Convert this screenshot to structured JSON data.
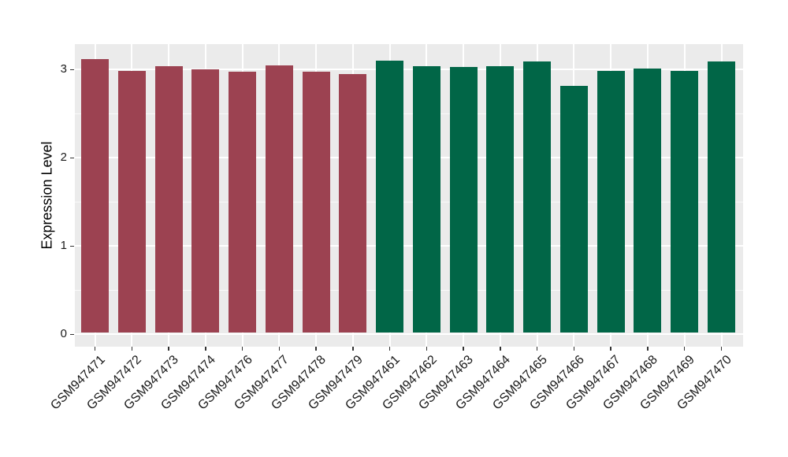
{
  "chart_data": {
    "type": "bar",
    "title": "",
    "xlabel": "",
    "ylabel": "Expression Level",
    "categories": [
      "GSM947471",
      "GSM947472",
      "GSM947473",
      "GSM947474",
      "GSM947476",
      "GSM947477",
      "GSM947478",
      "GSM947479",
      "GSM947461",
      "GSM947462",
      "GSM947463",
      "GSM947464",
      "GSM947465",
      "GSM947466",
      "GSM947467",
      "GSM947468",
      "GSM947469",
      "GSM947470"
    ],
    "values": [
      3.12,
      2.99,
      3.04,
      3.0,
      2.98,
      3.05,
      2.98,
      2.95,
      3.1,
      3.04,
      3.03,
      3.04,
      3.09,
      2.82,
      2.99,
      3.01,
      2.99,
      3.09
    ],
    "groups": [
      {
        "name": "left-group",
        "color": "#9C4251",
        "start": 0,
        "count": 8
      },
      {
        "name": "right-group",
        "color": "#016647",
        "start": 8,
        "count": 10
      }
    ],
    "yticks": [
      "0",
      "1",
      "2",
      "3"
    ],
    "yminor": [
      0.5,
      1.5,
      2.5
    ],
    "ylim": [
      -0.14,
      3.29
    ],
    "grid": "on",
    "legend_position": "none",
    "panel_background": "#EBEBEB",
    "gridline_color": "#FFFFFF",
    "axis_text_color": "#1A1A1A",
    "tick_color": "#333333"
  }
}
